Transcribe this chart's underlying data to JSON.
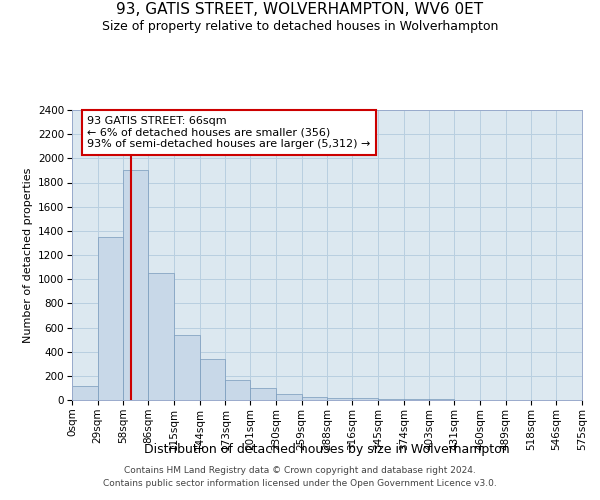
{
  "title": "93, GATIS STREET, WOLVERHAMPTON, WV6 0ET",
  "subtitle": "Size of property relative to detached houses in Wolverhampton",
  "xlabel": "Distribution of detached houses by size in Wolverhampton",
  "ylabel": "Number of detached properties",
  "footer_line1": "Contains HM Land Registry data © Crown copyright and database right 2024.",
  "footer_line2": "Contains public sector information licensed under the Open Government Licence v3.0.",
  "annotation_title": "93 GATIS STREET: 66sqm",
  "annotation_line2": "← 6% of detached houses are smaller (356)",
  "annotation_line3": "93% of semi-detached houses are larger (5,312) →",
  "property_sqm": 66,
  "bar_color": "#c8d8e8",
  "bar_edge_color": "#7799bb",
  "red_line_color": "#cc0000",
  "annotation_box_color": "#cc0000",
  "background_color": "#ffffff",
  "plot_bg_color": "#dce8f0",
  "grid_color": "#b8cfe0",
  "bin_labels": [
    "0sqm",
    "29sqm",
    "58sqm",
    "86sqm",
    "115sqm",
    "144sqm",
    "173sqm",
    "201sqm",
    "230sqm",
    "259sqm",
    "288sqm",
    "316sqm",
    "345sqm",
    "374sqm",
    "403sqm",
    "431sqm",
    "460sqm",
    "489sqm",
    "518sqm",
    "546sqm",
    "575sqm"
  ],
  "bin_edges": [
    0,
    29,
    58,
    86,
    115,
    144,
    173,
    201,
    230,
    259,
    288,
    316,
    345,
    374,
    403,
    431,
    460,
    489,
    518,
    546,
    575
  ],
  "bar_heights": [
    120,
    1350,
    1900,
    1050,
    540,
    340,
    165,
    100,
    50,
    28,
    20,
    18,
    12,
    8,
    5,
    3,
    2,
    1,
    0,
    1
  ],
  "ylim": [
    0,
    2400
  ],
  "yticks": [
    0,
    200,
    400,
    600,
    800,
    1000,
    1200,
    1400,
    1600,
    1800,
    2000,
    2200,
    2400
  ],
  "title_fontsize": 11,
  "subtitle_fontsize": 9,
  "ylabel_fontsize": 8,
  "xlabel_fontsize": 9,
  "tick_fontsize": 7.5,
  "annotation_fontsize": 8,
  "footer_fontsize": 6.5
}
